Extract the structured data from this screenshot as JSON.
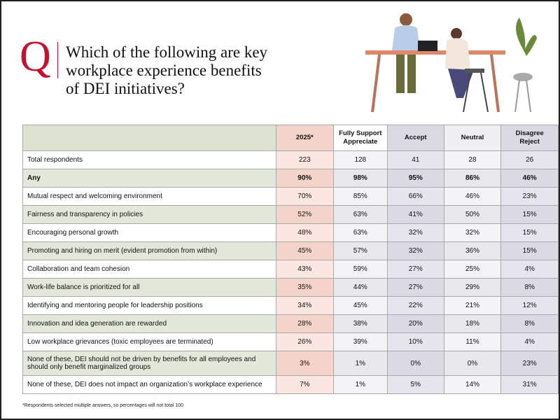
{
  "header": {
    "letter": "Q",
    "question": [
      "Which of the following are key",
      "workplace experience benefits",
      "of DEI initiatives?"
    ]
  },
  "table": {
    "columns": [
      [
        "2025*"
      ],
      [
        "Fully Support",
        "Appreciate"
      ],
      [
        "Accept"
      ],
      [
        "Neutral"
      ],
      [
        "Disagree",
        "Reject"
      ]
    ],
    "rows": [
      [
        "Total respondents",
        "223",
        "128",
        "41",
        "28",
        "26"
      ],
      [
        "Any",
        "90%",
        "98%",
        "95%",
        "86%",
        "46%"
      ],
      [
        "Mutual respect and welcoming environment",
        "70%",
        "85%",
        "66%",
        "46%",
        "23%"
      ],
      [
        "Fairness and transparency in policies",
        "52%",
        "63%",
        "41%",
        "50%",
        "15%"
      ],
      [
        "Encouraging personal growth",
        "48%",
        "63%",
        "32%",
        "32%",
        "15%"
      ],
      [
        "Promoting and hiring on merit (evident promotion from within)",
        "45%",
        "57%",
        "32%",
        "36%",
        "15%"
      ],
      [
        "Collaboration and team cohesion",
        "43%",
        "59%",
        "27%",
        "25%",
        "4%"
      ],
      [
        "Work-life balance is prioritized for all",
        "35%",
        "44%",
        "27%",
        "29%",
        "8%"
      ],
      [
        "Identifying and mentoring people for leadership positions",
        "34%",
        "45%",
        "22%",
        "21%",
        "12%"
      ],
      [
        "Innovation and idea generation are rewarded",
        "28%",
        "38%",
        "20%",
        "18%",
        "8%"
      ],
      [
        "Low workplace grievances (toxic employees are terminated)",
        "26%",
        "39%",
        "10%",
        "11%",
        "4%"
      ],
      [
        "None of these, DEI should not be driven by benefits for all employees and should only benefit marginalized groups",
        "3%",
        "1%",
        "0%",
        "0%",
        "23%"
      ],
      [
        "None of these, DEI does not impact an organization’s workplace experience",
        "7%",
        "1%",
        "5%",
        "14%",
        "31%"
      ]
    ]
  },
  "footnote": "*Respondents selected multiple answers, so percentages will not total 100"
}
